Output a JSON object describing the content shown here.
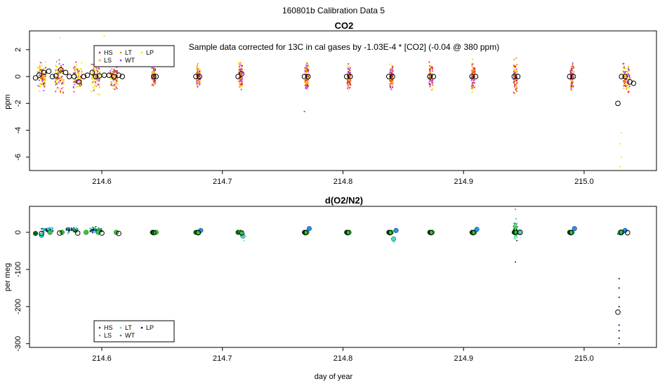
{
  "figure": {
    "title": "160801b   Calibration Data 5"
  },
  "chart_data": [
    {
      "type": "scatter",
      "title": "CO2",
      "note": "Sample data corrected for 13C in cal gases by -1.03E-4 * [CO2] (-0.04 @ 380 ppm)",
      "xlabel": "",
      "ylabel": "ppm",
      "xlim": [
        214.54,
        215.06
      ],
      "ylim": [
        -7,
        3.4
      ],
      "xticks": [
        214.6,
        214.7,
        214.8,
        214.9,
        215.0
      ],
      "xtick_labels": [
        "214.6",
        "214.7",
        "214.8",
        "214.9",
        "215.0"
      ],
      "yticks": [
        -6,
        -4,
        -2,
        0,
        2
      ],
      "ytick_labels": [
        "-6",
        "-4",
        "-2",
        "0",
        "2"
      ],
      "legend": {
        "placement": "top-left",
        "entries": [
          {
            "label": "HS",
            "color": "#e41a1c"
          },
          {
            "label": "LT",
            "color": "#ff7f00"
          },
          {
            "label": "LP",
            "color": "#e8e800"
          },
          {
            "label": "LS",
            "color": "#ff9900"
          },
          {
            "label": "WT",
            "color": "#9b30ff"
          }
        ]
      },
      "clusters": [
        {
          "x": 214.55,
          "w": 0.007,
          "spread": 1.7,
          "colors": [
            "#e41a1c",
            "#ff7f00",
            "#9b30ff",
            "#ffd700",
            "#e8e800"
          ]
        },
        {
          "x": 214.565,
          "w": 0.007,
          "spread": 1.9,
          "colors": [
            "#e41a1c",
            "#e8e800",
            "#ffd700",
            "#9b30ff",
            "#ff7f00"
          ]
        },
        {
          "x": 214.58,
          "w": 0.007,
          "spread": 1.8,
          "colors": [
            "#e8e800",
            "#ffd700",
            "#9b30ff",
            "#e41a1c"
          ]
        },
        {
          "x": 214.595,
          "w": 0.007,
          "spread": 1.9,
          "colors": [
            "#e8e800",
            "#ffd700",
            "#ff7f00",
            "#9b30ff"
          ]
        },
        {
          "x": 214.61,
          "w": 0.006,
          "spread": 1.6,
          "colors": [
            "#e8e800",
            "#e41a1c",
            "#9b30ff",
            "#ff7f00"
          ]
        },
        {
          "x": 214.643,
          "w": 0.003,
          "spread": 1.5,
          "colors": [
            "#e41a1c",
            "#9b30ff",
            "#ff7f00",
            "#ffd700"
          ]
        },
        {
          "x": 214.68,
          "w": 0.003,
          "spread": 1.4,
          "colors": [
            "#e41a1c",
            "#9b30ff",
            "#ff7f00",
            "#ffd700"
          ]
        },
        {
          "x": 214.715,
          "w": 0.003,
          "spread": 1.5,
          "colors": [
            "#e41a1c",
            "#9b30ff",
            "#ff7f00",
            "#ffd700"
          ]
        },
        {
          "x": 214.77,
          "w": 0.003,
          "spread": 1.7,
          "colors": [
            "#e41a1c",
            "#9b30ff",
            "#ff7f00",
            "#ffd700"
          ]
        },
        {
          "x": 214.805,
          "w": 0.003,
          "spread": 1.5,
          "colors": [
            "#e41a1c",
            "#9b30ff",
            "#ff7f00",
            "#ffd700"
          ]
        },
        {
          "x": 214.84,
          "w": 0.003,
          "spread": 1.7,
          "colors": [
            "#e41a1c",
            "#9b30ff",
            "#ff7f00",
            "#ffd700"
          ]
        },
        {
          "x": 214.873,
          "w": 0.003,
          "spread": 1.7,
          "colors": [
            "#e41a1c",
            "#9b30ff",
            "#ff7f00",
            "#ffd700"
          ]
        },
        {
          "x": 214.908,
          "w": 0.003,
          "spread": 1.6,
          "colors": [
            "#e41a1c",
            "#9b30ff",
            "#ff7f00",
            "#ffd700"
          ]
        },
        {
          "x": 214.943,
          "w": 0.003,
          "spread": 1.8,
          "colors": [
            "#e41a1c",
            "#9b30ff",
            "#ff7f00",
            "#ffd700"
          ]
        },
        {
          "x": 214.99,
          "w": 0.003,
          "spread": 1.5,
          "colors": [
            "#e41a1c",
            "#9b30ff",
            "#ff7f00",
            "#ffd700"
          ]
        },
        {
          "x": 215.035,
          "w": 0.006,
          "spread": 1.8,
          "colors": [
            "#e41a1c",
            "#9b30ff",
            "#ff7f00",
            "#e8e800",
            "#ffd700"
          ]
        }
      ],
      "outliers": [
        {
          "x": 215.031,
          "y": -4.2,
          "color": "#e8e800"
        },
        {
          "x": 215.03,
          "y": -5.0,
          "color": "#e8e800"
        },
        {
          "x": 215.031,
          "y": -6.0,
          "color": "#e8e800"
        },
        {
          "x": 215.03,
          "y": -6.7,
          "color": "#e8e800"
        },
        {
          "x": 214.768,
          "y": -2.6,
          "color": "#e41a1c"
        },
        {
          "x": 214.565,
          "y": 2.9,
          "color": "#e8e800"
        },
        {
          "x": 214.602,
          "y": 3.0,
          "color": "#e8e800"
        }
      ],
      "means": [
        {
          "x": 214.545,
          "y": -0.1
        },
        {
          "x": 214.548,
          "y": 0.1
        },
        {
          "x": 214.552,
          "y": 0.3
        },
        {
          "x": 214.556,
          "y": 0.4
        },
        {
          "x": 214.559,
          "y": 0.0
        },
        {
          "x": 214.562,
          "y": 0.05
        },
        {
          "x": 214.566,
          "y": 0.5
        },
        {
          "x": 214.57,
          "y": 0.3
        },
        {
          "x": 214.573,
          "y": 0.0
        },
        {
          "x": 214.577,
          "y": 0.0
        },
        {
          "x": 214.581,
          "y": -0.4
        },
        {
          "x": 214.585,
          "y": 0.0
        },
        {
          "x": 214.588,
          "y": 0.1
        },
        {
          "x": 214.592,
          "y": 0.3
        },
        {
          "x": 214.595,
          "y": 0.0
        },
        {
          "x": 214.598,
          "y": 0.05
        },
        {
          "x": 214.602,
          "y": 0.1
        },
        {
          "x": 214.606,
          "y": 0.1
        },
        {
          "x": 214.61,
          "y": 0.0
        },
        {
          "x": 214.614,
          "y": 0.1
        },
        {
          "x": 214.617,
          "y": 0.0
        },
        {
          "x": 214.643,
          "y": 0.0
        },
        {
          "x": 214.645,
          "y": 0.0
        },
        {
          "x": 214.678,
          "y": 0.0
        },
        {
          "x": 214.681,
          "y": 0.0
        },
        {
          "x": 214.713,
          "y": 0.0
        },
        {
          "x": 214.716,
          "y": 0.2
        },
        {
          "x": 214.768,
          "y": 0.0
        },
        {
          "x": 214.771,
          "y": 0.0
        },
        {
          "x": 214.803,
          "y": 0.0
        },
        {
          "x": 214.806,
          "y": 0.0
        },
        {
          "x": 214.838,
          "y": 0.0
        },
        {
          "x": 214.841,
          "y": 0.0
        },
        {
          "x": 214.872,
          "y": 0.0
        },
        {
          "x": 214.875,
          "y": 0.0
        },
        {
          "x": 214.907,
          "y": 0.0
        },
        {
          "x": 214.91,
          "y": 0.0
        },
        {
          "x": 214.942,
          "y": 0.0
        },
        {
          "x": 214.945,
          "y": 0.0
        },
        {
          "x": 214.988,
          "y": 0.0
        },
        {
          "x": 214.991,
          "y": 0.0
        },
        {
          "x": 215.028,
          "y": -2.0
        },
        {
          "x": 215.031,
          "y": 0.0
        },
        {
          "x": 215.034,
          "y": 0.0
        },
        {
          "x": 215.038,
          "y": -0.4
        },
        {
          "x": 215.041,
          "y": -0.5
        }
      ]
    },
    {
      "type": "scatter",
      "title": "d(O2/N2)",
      "xlabel": "day of year",
      "ylabel": "per meg",
      "xlim": [
        214.54,
        215.06
      ],
      "ylim": [
        -310,
        70
      ],
      "xticks": [
        214.6,
        214.7,
        214.8,
        214.9,
        215.0
      ],
      "xtick_labels": [
        "214.6",
        "214.7",
        "214.8",
        "214.9",
        "215.0"
      ],
      "yticks": [
        -300,
        -200,
        -100,
        0
      ],
      "ytick_labels": [
        "-300",
        "-200",
        "-100",
        "0"
      ],
      "legend": {
        "placement": "bottom-left",
        "entries": [
          {
            "label": "HS",
            "color": "#006400"
          },
          {
            "label": "LT",
            "color": "#40e0d0"
          },
          {
            "label": "LP",
            "color": "#000080"
          },
          {
            "label": "LS",
            "color": "#32cd32"
          },
          {
            "label": "WT",
            "color": "#1e90ff"
          }
        ]
      },
      "clusters": [
        {
          "x": 214.555,
          "w": 0.01,
          "spread": 12,
          "center": 6,
          "colors": [
            "#000080",
            "#1e90ff",
            "#32cd32",
            "#40e0d0"
          ]
        },
        {
          "x": 214.575,
          "w": 0.01,
          "spread": 12,
          "center": 6,
          "colors": [
            "#000080",
            "#1e90ff",
            "#32cd32",
            "#006400"
          ]
        },
        {
          "x": 214.595,
          "w": 0.01,
          "spread": 12,
          "center": 6,
          "colors": [
            "#000080",
            "#1e90ff",
            "#32cd32",
            "#006400"
          ]
        },
        {
          "x": 214.943,
          "w": 0.003,
          "spread": 40,
          "center": 5,
          "colors": [
            "#32cd32",
            "#006400",
            "#40e0d0"
          ]
        },
        {
          "x": 215.03,
          "w": 0.004,
          "spread": 10,
          "center": 0,
          "colors": [
            "#32cd32",
            "#40e0d0",
            "#000080"
          ]
        }
      ],
      "outliers": [
        {
          "x": 214.943,
          "y": -80,
          "color": "#006400"
        },
        {
          "x": 214.943,
          "y": 62,
          "color": "#32cd32"
        },
        {
          "x": 215.029,
          "y": -125,
          "color": "#000080"
        },
        {
          "x": 215.029,
          "y": -150,
          "color": "#000080"
        },
        {
          "x": 215.029,
          "y": -175,
          "color": "#000080"
        },
        {
          "x": 215.029,
          "y": -200,
          "color": "#000080"
        },
        {
          "x": 215.029,
          "y": -250,
          "color": "#000080"
        },
        {
          "x": 215.029,
          "y": -265,
          "color": "#000080"
        },
        {
          "x": 215.029,
          "y": -285,
          "color": "#000080"
        },
        {
          "x": 215.029,
          "y": -300,
          "color": "#000080"
        },
        {
          "x": 214.718,
          "y": -22,
          "color": "#40e0d0"
        },
        {
          "x": 214.842,
          "y": -27,
          "color": "#40e0d0"
        }
      ],
      "markers": [
        {
          "x": 214.545,
          "y": -3,
          "color": "#006400"
        },
        {
          "x": 214.55,
          "y": -8,
          "color": "#40e0d0"
        },
        {
          "x": 214.557,
          "y": 0,
          "color": "#32cd32"
        },
        {
          "x": 214.567,
          "y": 0,
          "color": "#32cd32"
        },
        {
          "x": 214.587,
          "y": 0,
          "color": "#32cd32"
        },
        {
          "x": 214.597,
          "y": 0,
          "color": "#32cd32"
        },
        {
          "x": 214.612,
          "y": 0,
          "color": "#32cd32"
        },
        {
          "x": 214.642,
          "y": 0,
          "color": "#006400"
        },
        {
          "x": 214.645,
          "y": 0,
          "color": "#32cd32"
        },
        {
          "x": 214.678,
          "y": 0,
          "color": "#006400"
        },
        {
          "x": 214.68,
          "y": 0,
          "color": "#32cd32"
        },
        {
          "x": 214.682,
          "y": 5,
          "color": "#1e90ff"
        },
        {
          "x": 214.713,
          "y": 0,
          "color": "#006400"
        },
        {
          "x": 214.715,
          "y": 0,
          "color": "#32cd32"
        },
        {
          "x": 214.717,
          "y": -10,
          "color": "#40e0d0"
        },
        {
          "x": 214.768,
          "y": 0,
          "color": "#006400"
        },
        {
          "x": 214.77,
          "y": 0,
          "color": "#32cd32"
        },
        {
          "x": 214.772,
          "y": 10,
          "color": "#1e90ff"
        },
        {
          "x": 214.803,
          "y": 0,
          "color": "#006400"
        },
        {
          "x": 214.805,
          "y": 0,
          "color": "#32cd32"
        },
        {
          "x": 214.838,
          "y": 0,
          "color": "#006400"
        },
        {
          "x": 214.84,
          "y": 0,
          "color": "#32cd32"
        },
        {
          "x": 214.842,
          "y": -18,
          "color": "#40e0d0"
        },
        {
          "x": 214.844,
          "y": 5,
          "color": "#1e90ff"
        },
        {
          "x": 214.872,
          "y": 0,
          "color": "#006400"
        },
        {
          "x": 214.874,
          "y": 0,
          "color": "#32cd32"
        },
        {
          "x": 214.907,
          "y": 0,
          "color": "#006400"
        },
        {
          "x": 214.909,
          "y": 0,
          "color": "#32cd32"
        },
        {
          "x": 214.911,
          "y": 8,
          "color": "#1e90ff"
        },
        {
          "x": 214.942,
          "y": 0,
          "color": "#006400"
        },
        {
          "x": 214.944,
          "y": 0,
          "color": "#32cd32"
        },
        {
          "x": 214.946,
          "y": 0,
          "color": "#40e0d0"
        },
        {
          "x": 214.988,
          "y": 0,
          "color": "#006400"
        },
        {
          "x": 214.99,
          "y": 0,
          "color": "#32cd32"
        },
        {
          "x": 214.992,
          "y": 10,
          "color": "#1e90ff"
        },
        {
          "x": 215.03,
          "y": 0,
          "color": "#32cd32"
        },
        {
          "x": 215.034,
          "y": 5,
          "color": "#1e90ff"
        }
      ],
      "means": [
        {
          "x": 214.55,
          "y": -3
        },
        {
          "x": 214.565,
          "y": -2
        },
        {
          "x": 214.58,
          "y": -2
        },
        {
          "x": 214.6,
          "y": -2
        },
        {
          "x": 214.614,
          "y": -3
        },
        {
          "x": 214.643,
          "y": -1
        },
        {
          "x": 214.68,
          "y": -1
        },
        {
          "x": 214.716,
          "y": -2
        },
        {
          "x": 214.769,
          "y": -1
        },
        {
          "x": 214.804,
          "y": -1
        },
        {
          "x": 214.839,
          "y": -1
        },
        {
          "x": 214.873,
          "y": -1
        },
        {
          "x": 214.908,
          "y": -1
        },
        {
          "x": 214.943,
          "y": 0
        },
        {
          "x": 214.947,
          "y": 0
        },
        {
          "x": 214.989,
          "y": -1
        },
        {
          "x": 215.028,
          "y": -215
        },
        {
          "x": 215.031,
          "y": 0
        },
        {
          "x": 215.036,
          "y": -1
        }
      ]
    }
  ]
}
